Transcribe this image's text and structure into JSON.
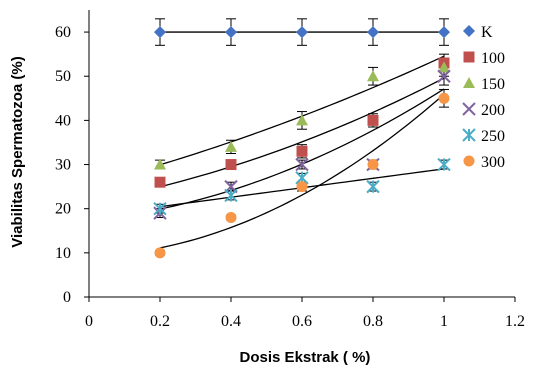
{
  "chart_data": {
    "type": "scatter",
    "title": "",
    "xlabel": "Dosis Ekstrak ( %)",
    "ylabel": "Viabilitas Spermatozoa (%)",
    "xlim": [
      0,
      1.2
    ],
    "ylim": [
      0,
      65
    ],
    "x_ticks": [
      0,
      0.2,
      0.4,
      0.6,
      0.8,
      1,
      1.2
    ],
    "y_ticks": [
      0,
      10,
      20,
      30,
      40,
      50,
      60
    ],
    "x_tick_labels": [
      "0",
      "0.2",
      "0.4",
      "0.6",
      "0.8",
      "1",
      "1.2"
    ],
    "y_tick_labels": [
      "0",
      "10",
      "20",
      "30",
      "40",
      "50",
      "60"
    ],
    "grid": false,
    "legend_position": "right",
    "x": [
      0.2,
      0.4,
      0.6,
      0.8,
      1.0
    ],
    "series": [
      {
        "name": "K",
        "marker": "diamond",
        "color": "#4472C4",
        "values": [
          60,
          60,
          60,
          60,
          60
        ],
        "errors": [
          3,
          3,
          3,
          3,
          3
        ],
        "trendline": "linear",
        "trend_values": [
          60,
          60,
          60,
          60,
          60
        ]
      },
      {
        "name": "100",
        "marker": "square",
        "color": "#C0504D",
        "values": [
          26,
          30,
          33,
          40,
          53
        ],
        "errors": [
          1,
          1,
          1.5,
          1.5,
          2
        ],
        "trendline": "poly2",
        "trend_values": [
          25,
          29.5,
          35,
          42,
          49.5
        ]
      },
      {
        "name": "150",
        "marker": "triangle",
        "color": "#9BBB59",
        "values": [
          30,
          34,
          40,
          50,
          52
        ],
        "errors": [
          1,
          1.5,
          2,
          2,
          2
        ],
        "trendline": "poly2",
        "trend_values": [
          30,
          35,
          41,
          47.5,
          54.5
        ]
      },
      {
        "name": "200",
        "marker": "x",
        "color": "#8064A2",
        "values": [
          19,
          25,
          30,
          30,
          50
        ],
        "errors": [
          1,
          1,
          1,
          1,
          2
        ],
        "trendline": "poly2",
        "trend_values": [
          20,
          24,
          30,
          38,
          47
        ]
      },
      {
        "name": "250",
        "marker": "star",
        "color": "#4BACC6",
        "values": [
          20,
          23,
          27,
          25,
          30
        ],
        "errors": [
          1,
          1,
          1,
          1,
          1
        ],
        "trendline": "linear",
        "trend_values": [
          20.5,
          22.5,
          24.8,
          26.9,
          29
        ]
      },
      {
        "name": "300",
        "marker": "circle",
        "color": "#F79646",
        "values": [
          10,
          18,
          25,
          30,
          45
        ],
        "errors": [
          0.5,
          0.5,
          1,
          1,
          2
        ],
        "trendline": "poly2",
        "trend_values": [
          11,
          16,
          23,
          33,
          46
        ]
      }
    ]
  }
}
